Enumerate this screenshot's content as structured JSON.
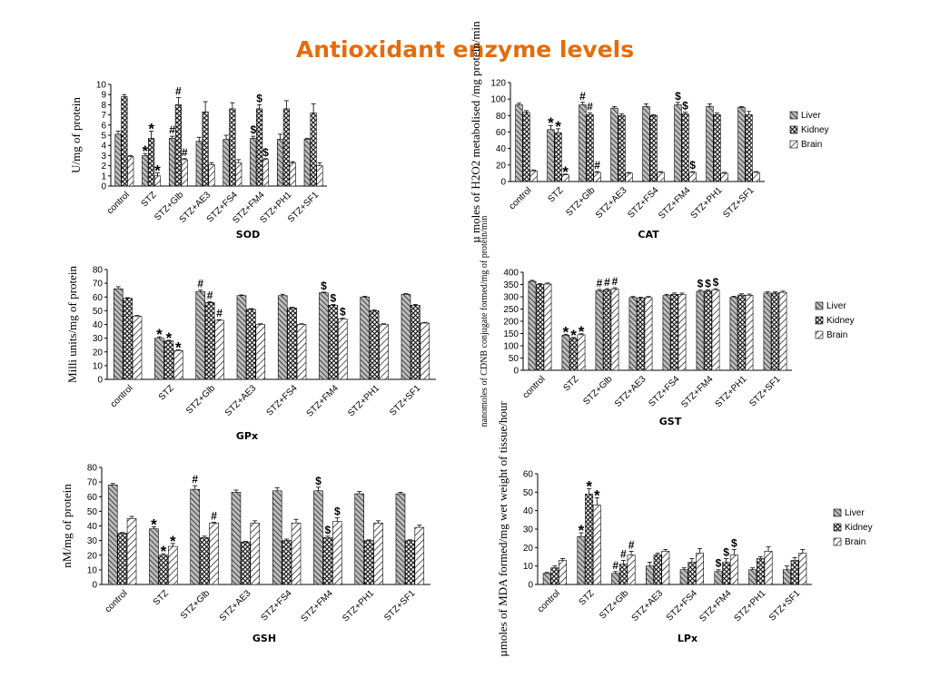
{
  "page_title": "Antioxidant enzyme levels",
  "colors": {
    "title": "#e46c0a",
    "ink": "#000000"
  },
  "chart_data": [
    {
      "id": "sod",
      "type": "bar",
      "caption": "SOD",
      "title": "",
      "xlabel": "",
      "ylabel": "U/mg of protein",
      "ylim": [
        0,
        10
      ],
      "yticks": [
        0,
        1,
        2,
        3,
        4,
        5,
        6,
        7,
        8,
        9,
        10
      ],
      "categories": [
        "control",
        "STZ",
        "STZ+Glb",
        "STZ+AE3",
        "STZ+FS4",
        "STZ+FM4",
        "STZ+PH1",
        "STZ+SF1"
      ],
      "series": [
        {
          "name": "",
          "values": [
            5.1,
            3.0,
            4.7,
            4.4,
            4.6,
            4.7,
            4.6,
            4.6
          ],
          "errors": [
            0.3,
            0.2,
            0.2,
            0.4,
            0.4,
            0.2,
            0.5,
            0.1
          ]
        },
        {
          "name": "",
          "values": [
            8.8,
            4.7,
            8.0,
            7.3,
            7.6,
            7.6,
            7.6,
            7.2
          ],
          "errors": [
            0.2,
            0.7,
            0.7,
            1.0,
            0.6,
            0.4,
            0.8,
            0.9
          ]
        },
        {
          "name": "",
          "values": [
            2.9,
            1.0,
            2.6,
            2.1,
            2.3,
            2.6,
            2.3,
            2.0
          ],
          "errors": [
            0.1,
            0.3,
            0.1,
            0.2,
            0.3,
            0.1,
            0.1,
            0.3
          ]
        }
      ],
      "annotations": [
        {
          "cat": 1,
          "series": 0,
          "text": "*"
        },
        {
          "cat": 1,
          "series": 1,
          "text": "*"
        },
        {
          "cat": 1,
          "series": 2,
          "text": "*"
        },
        {
          "cat": 2,
          "series": 0,
          "text": "#"
        },
        {
          "cat": 2,
          "series": 1,
          "text": "#"
        },
        {
          "cat": 2,
          "series": 2,
          "text": "#"
        },
        {
          "cat": 5,
          "series": 0,
          "text": "$"
        },
        {
          "cat": 5,
          "series": 1,
          "text": "$"
        },
        {
          "cat": 5,
          "series": 2,
          "text": "$"
        }
      ],
      "legend": []
    },
    {
      "id": "cat",
      "type": "bar",
      "caption": "CAT",
      "title": "",
      "xlabel": "",
      "ylabel": "µ moles of H2O2 metabolised /mg protein/min",
      "ylim": [
        0,
        120
      ],
      "yticks": [
        0,
        20,
        40,
        60,
        80,
        100,
        120
      ],
      "categories": [
        "control",
        "STZ",
        "STZ+Glb",
        "STZ+AE3",
        "STZ+FS4",
        "STZ+FM4",
        "STZ+PH1",
        "STZ+SF1"
      ],
      "series": [
        {
          "name": "Liver",
          "values": [
            93,
            63,
            93,
            89,
            91,
            93,
            91,
            90
          ],
          "errors": [
            2,
            5,
            3,
            2,
            3,
            3,
            3,
            1
          ]
        },
        {
          "name": "Kidney",
          "values": [
            84,
            59,
            81,
            80,
            80,
            82,
            81,
            81
          ],
          "errors": [
            2,
            5,
            2,
            2,
            1,
            2,
            2,
            4
          ]
        },
        {
          "name": "Brain",
          "values": [
            13,
            8,
            11,
            10,
            11,
            11,
            10,
            11
          ],
          "errors": [
            1,
            1,
            1,
            1,
            1,
            1,
            1,
            1
          ]
        }
      ],
      "annotations": [
        {
          "cat": 1,
          "series": 0,
          "text": "*"
        },
        {
          "cat": 1,
          "series": 1,
          "text": "*"
        },
        {
          "cat": 1,
          "series": 2,
          "text": "*"
        },
        {
          "cat": 2,
          "series": 0,
          "text": "#"
        },
        {
          "cat": 2,
          "series": 1,
          "text": "#"
        },
        {
          "cat": 2,
          "series": 2,
          "text": "#"
        },
        {
          "cat": 5,
          "series": 0,
          "text": "$"
        },
        {
          "cat": 5,
          "series": 1,
          "text": "$"
        },
        {
          "cat": 5,
          "series": 2,
          "text": "$"
        }
      ],
      "legend": [
        "Liver",
        "Kidney",
        "Brain"
      ]
    },
    {
      "id": "gpx",
      "type": "bar",
      "caption": "GPx",
      "title": "",
      "xlabel": "",
      "ylabel": "Milli units/mg of protein",
      "ylim": [
        0,
        80
      ],
      "yticks": [
        0,
        10,
        20,
        30,
        40,
        50,
        60,
        70,
        80
      ],
      "categories": [
        "control",
        "STZ",
        "STZ+Glb",
        "STZ+AE3",
        "STZ+FS4",
        "STZ+FM4",
        "STZ+PH1",
        "STZ+SF1"
      ],
      "series": [
        {
          "name": "",
          "values": [
            66,
            30,
            64,
            61,
            61,
            63,
            60,
            62
          ],
          "errors": [
            1.5,
            1,
            1,
            0.5,
            1,
            0.5,
            0.5,
            0.5
          ]
        },
        {
          "name": "",
          "values": [
            59,
            28,
            56,
            51,
            52,
            54,
            50,
            54
          ],
          "errors": [
            0.5,
            0.5,
            0.5,
            0.5,
            0.5,
            0.5,
            0.5,
            0.5
          ]
        },
        {
          "name": "",
          "values": [
            46,
            21,
            43,
            40,
            40,
            44,
            40,
            41
          ],
          "errors": [
            0.5,
            0.5,
            0.5,
            0.5,
            0.5,
            0.5,
            0.5,
            0.5
          ]
        }
      ],
      "annotations": [
        {
          "cat": 1,
          "series": 0,
          "text": "*"
        },
        {
          "cat": 1,
          "series": 1,
          "text": "*"
        },
        {
          "cat": 1,
          "series": 2,
          "text": "*"
        },
        {
          "cat": 2,
          "series": 0,
          "text": "#"
        },
        {
          "cat": 2,
          "series": 1,
          "text": "#"
        },
        {
          "cat": 2,
          "series": 2,
          "text": "#"
        },
        {
          "cat": 5,
          "series": 0,
          "text": "$"
        },
        {
          "cat": 5,
          "series": 1,
          "text": "$"
        },
        {
          "cat": 5,
          "series": 2,
          "text": "$"
        }
      ],
      "legend": []
    },
    {
      "id": "gst",
      "type": "bar",
      "caption": "GST",
      "title": "",
      "xlabel": "",
      "ylabel": "nanomoles of CDNB conjugate formed/mg of protein/min",
      "ylim": [
        0,
        400
      ],
      "yticks": [
        0,
        50,
        100,
        150,
        200,
        250,
        300,
        350,
        400
      ],
      "categories": [
        "control",
        "STZ",
        "STZ+Glb",
        "STZ+AE3",
        "STZ+FS4",
        "STZ+FM4",
        "STZ+PH1",
        "STZ+SF1"
      ],
      "series": [
        {
          "name": "Liver",
          "values": [
            363,
            143,
            325,
            297,
            305,
            322,
            298,
            315
          ],
          "errors": [
            4,
            4,
            5,
            4,
            5,
            5,
            4,
            5
          ]
        },
        {
          "name": "Kidney",
          "values": [
            350,
            130,
            328,
            294,
            310,
            323,
            307,
            315
          ],
          "errors": [
            4,
            4,
            5,
            4,
            5,
            5,
            5,
            5
          ]
        },
        {
          "name": "Brain",
          "values": [
            352,
            145,
            332,
            297,
            310,
            328,
            306,
            318
          ],
          "errors": [
            4,
            4,
            5,
            4,
            5,
            5,
            5,
            5
          ]
        }
      ],
      "annotations": [
        {
          "cat": 1,
          "series": 0,
          "text": "*"
        },
        {
          "cat": 1,
          "series": 1,
          "text": "*"
        },
        {
          "cat": 1,
          "series": 2,
          "text": "*"
        },
        {
          "cat": 2,
          "series": 0,
          "text": "#"
        },
        {
          "cat": 2,
          "series": 1,
          "text": "#"
        },
        {
          "cat": 2,
          "series": 2,
          "text": "#"
        },
        {
          "cat": 5,
          "series": 0,
          "text": "$"
        },
        {
          "cat": 5,
          "series": 1,
          "text": "$"
        },
        {
          "cat": 5,
          "series": 2,
          "text": "$"
        }
      ],
      "legend": [
        "Liver",
        "Kidney",
        "Brain"
      ]
    },
    {
      "id": "gsh",
      "type": "bar",
      "caption": "GSH",
      "title": "",
      "xlabel": "",
      "ylabel": "nM/mg of protein",
      "ylim": [
        0,
        80
      ],
      "yticks": [
        0,
        10,
        20,
        30,
        40,
        50,
        60,
        70,
        80
      ],
      "categories": [
        "control",
        "STZ",
        "STZ+Glb",
        "STZ+AE3",
        "STZ+FS4",
        "STZ+FM4",
        "STZ+PH1",
        "STZ+SF1"
      ],
      "series": [
        {
          "name": "",
          "values": [
            68,
            38,
            65,
            63,
            64,
            64,
            62,
            62
          ],
          "errors": [
            1,
            1.5,
            2.5,
            1.5,
            2,
            2.5,
            1.5,
            1
          ]
        },
        {
          "name": "",
          "values": [
            35,
            20,
            32,
            29,
            30,
            32,
            30,
            30
          ],
          "errors": [
            0.5,
            1,
            1,
            0.5,
            1,
            1,
            0.5,
            0.5
          ]
        },
        {
          "name": "",
          "values": [
            45,
            26,
            42,
            42,
            42,
            43,
            42,
            39
          ],
          "errors": [
            1.5,
            2,
            0.5,
            1.5,
            2.5,
            2.5,
            1.5,
            1.5
          ]
        }
      ],
      "annotations": [
        {
          "cat": 1,
          "series": 0,
          "text": "*"
        },
        {
          "cat": 1,
          "series": 1,
          "text": "*"
        },
        {
          "cat": 1,
          "series": 2,
          "text": "*"
        },
        {
          "cat": 2,
          "series": 0,
          "text": "#"
        },
        {
          "cat": 2,
          "series": 2,
          "text": "#"
        },
        {
          "cat": 5,
          "series": 0,
          "text": "$"
        },
        {
          "cat": 5,
          "series": 1,
          "text": "$"
        },
        {
          "cat": 5,
          "series": 2,
          "text": "$"
        }
      ],
      "legend": []
    },
    {
      "id": "lpx",
      "type": "bar",
      "caption": "LPx",
      "title": "",
      "xlabel": "",
      "ylabel": "µmoles of MDA formed/mg wet weight of tissue/hour",
      "ylim": [
        0,
        60
      ],
      "yticks": [
        0,
        10,
        20,
        30,
        40,
        50,
        60
      ],
      "categories": [
        "control",
        "STZ",
        "STZ+Glb",
        "STZ+AE3",
        "STZ+FS4",
        "STZ+FM4",
        "STZ+PH1",
        "STZ+SF1"
      ],
      "series": [
        {
          "name": "Liver",
          "values": [
            6,
            26,
            6,
            10,
            8,
            7,
            8,
            8
          ],
          "errors": [
            0.5,
            2,
            1,
            2,
            1,
            1,
            1,
            2
          ]
        },
        {
          "name": "Kidney",
          "values": [
            9,
            49,
            11,
            16,
            12,
            12,
            14,
            13
          ],
          "errors": [
            1,
            3,
            2,
            1,
            2,
            2,
            1,
            1.5
          ]
        },
        {
          "name": "Brain",
          "values": [
            13,
            43,
            16,
            18,
            17,
            16,
            18,
            17
          ],
          "errors": [
            1,
            4,
            2,
            1,
            2.5,
            3,
            2.5,
            2
          ]
        }
      ],
      "annotations": [
        {
          "cat": 1,
          "series": 0,
          "text": "*"
        },
        {
          "cat": 1,
          "series": 1,
          "text": "*"
        },
        {
          "cat": 1,
          "series": 2,
          "text": "*"
        },
        {
          "cat": 2,
          "series": 0,
          "text": "#"
        },
        {
          "cat": 2,
          "series": 1,
          "text": "#"
        },
        {
          "cat": 2,
          "series": 2,
          "text": "#"
        },
        {
          "cat": 5,
          "series": 0,
          "text": "$"
        },
        {
          "cat": 5,
          "series": 1,
          "text": "$"
        },
        {
          "cat": 5,
          "series": 2,
          "text": "$"
        }
      ],
      "legend": [
        "Liver",
        "Kidney",
        "Brain"
      ]
    }
  ]
}
